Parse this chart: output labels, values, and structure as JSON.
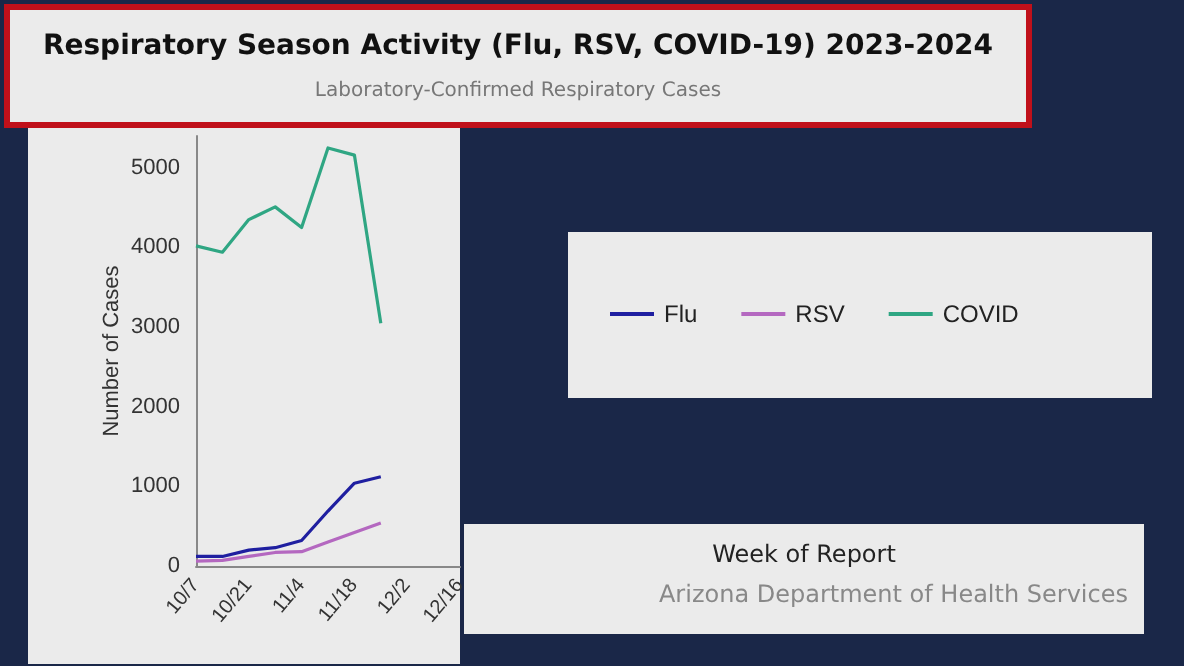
{
  "chart_data": {
    "type": "line",
    "title": "Respiratory Season Activity (Flu, RSV, COVID-19) 2023-2024",
    "subtitle": "Laboratory-Confirmed Respiratory Cases",
    "ylabel": "Number of Cases",
    "annotations": [
      "Week of Report",
      "Arizona Department of Health Services"
    ],
    "categories": [
      "10/7",
      null,
      "10/21",
      null,
      "11/4",
      null,
      "11/18",
      null,
      "12/2",
      null,
      "12/16"
    ],
    "series": [
      {
        "name": "Flu",
        "color": "#1f1fa0",
        "values": [
          120,
          120,
          200,
          230,
          320,
          690,
          1040,
          1120,
          null,
          null,
          null
        ]
      },
      {
        "name": "RSV",
        "color": "#b468c0",
        "values": [
          60,
          70,
          120,
          170,
          180,
          300,
          420,
          540,
          null,
          null,
          null
        ]
      },
      {
        "name": "COVID",
        "color": "#2fa683",
        "values": [
          4020,
          3940,
          4350,
          4510,
          4250,
          5250,
          5160,
          3050,
          null,
          null,
          null
        ]
      }
    ],
    "ylim": [
      0,
      5400
    ],
    "yticks": [
      0,
      1000,
      2000,
      3000,
      4000,
      5000
    ],
    "grid": false,
    "legend": "right",
    "marker": "none",
    "line_style": "solid"
  }
}
